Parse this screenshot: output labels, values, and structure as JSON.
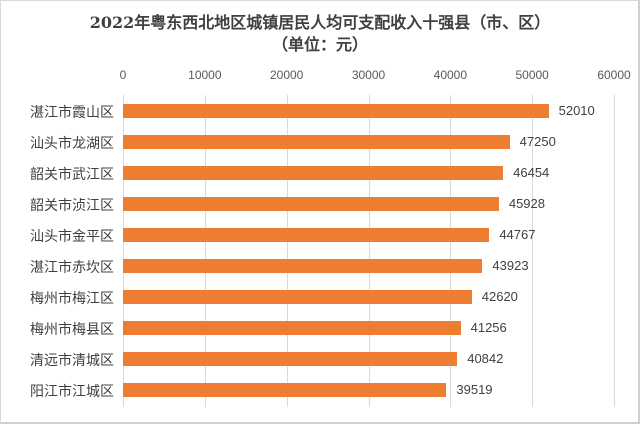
{
  "chart_data": {
    "type": "bar",
    "orientation": "horizontal",
    "title": "2022年粤东西北地区城镇居民人均可支配收入十强县（市、区）",
    "subtitle": "（单位：元）",
    "xlabel": "",
    "ylabel": "",
    "xlim": [
      0,
      60000
    ],
    "xticks": [
      "0",
      "10000",
      "20000",
      "30000",
      "40000",
      "50000",
      "60000"
    ],
    "grid": true,
    "legend": null,
    "bar_color": "#ed7d31",
    "categories": [
      "湛江市霞山区",
      "汕头市龙湖区",
      "韶关市武江区",
      "韶关市浈江区",
      "汕头市金平区",
      "湛江市赤坎区",
      "梅州市梅江区",
      "梅州市梅县区",
      "清远市清城区",
      "阳江市江城区"
    ],
    "values": [
      52010,
      47250,
      46454,
      45928,
      44767,
      43923,
      42620,
      41256,
      40842,
      39519
    ],
    "value_labels": [
      "52010",
      "47250",
      "46454",
      "45928",
      "44767",
      "43923",
      "42620",
      "41256",
      "40842",
      "39519"
    ]
  }
}
